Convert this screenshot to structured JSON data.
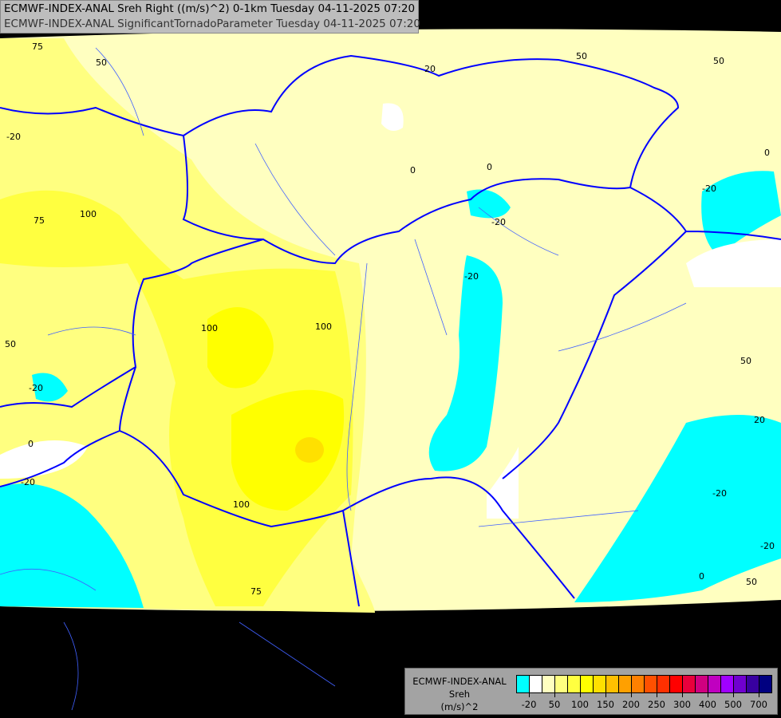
{
  "header": {
    "line1": "ECMWF-INDEX-ANAL Sreh Right ((m/s)^2) 0-1km Tuesday 04-11-2025 07:20",
    "line2": "ECMWF-INDEX-ANAL SignificantTornadoParameter Tuesday 04-11-2025 07:20"
  },
  "contour_labels": [
    "75",
    "50",
    "100",
    "75",
    "50",
    "-20",
    "0",
    "-20",
    "100",
    "100",
    "100",
    "75",
    "0",
    "0",
    "-20",
    "-20",
    "-20",
    "50",
    "50",
    "0",
    "-20",
    "20",
    "-20",
    "-20",
    "0",
    "50",
    "50",
    "20"
  ],
  "legend": {
    "line1": "ECMWF-INDEX-ANAL",
    "line2": "Sreh",
    "line3": "(m/s)^2",
    "colors": [
      "#00ffff",
      "#ffffff",
      "#ffffc0",
      "#ffff80",
      "#ffff40",
      "#ffff00",
      "#ffe000",
      "#ffc000",
      "#ffa000",
      "#ff8000",
      "#ff5000",
      "#ff3000",
      "#ff0000",
      "#e8003c",
      "#d00080",
      "#c000c0",
      "#a000ff",
      "#7000d0",
      "#3800a0",
      "#000080"
    ],
    "ticks": [
      "-20",
      "50",
      "100",
      "150",
      "200",
      "250",
      "300",
      "400",
      "500",
      "700"
    ]
  },
  "colors": {
    "border": "#0000ff",
    "river": "#4060ff",
    "background": "#000000"
  }
}
